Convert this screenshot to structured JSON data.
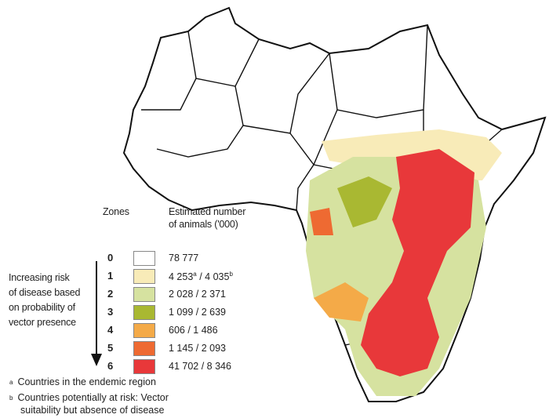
{
  "legend": {
    "zones_header": "Zones",
    "estimate_header_line1": "Estimated number",
    "estimate_header_line2": "of animals ('000)",
    "risk_label": [
      "Increasing risk",
      "of disease based",
      "on probability of",
      "vector presence"
    ],
    "zones": [
      {
        "zone": "0",
        "color": "#ffffff",
        "value": "78 777"
      },
      {
        "zone": "1",
        "color": "#f8ebb8",
        "value_a": "4 253",
        "value_b": "4 035"
      },
      {
        "zone": "2",
        "color": "#d6e2a0",
        "value": "2 028 / 2 371"
      },
      {
        "zone": "3",
        "color": "#a9b832",
        "value": "1 099 / 2 639"
      },
      {
        "zone": "4",
        "color": "#f4aa48",
        "value": "606 / 1 486"
      },
      {
        "zone": "5",
        "color": "#ee6a32",
        "value": "1 145 / 2 093"
      },
      {
        "zone": "6",
        "color": "#e8383a",
        "value": "41 702 / 8 346"
      }
    ],
    "sup_a": "a",
    "sup_b": "b",
    "separator": " / "
  },
  "footnotes": [
    {
      "mark": "a",
      "text": "Countries in the endemic region"
    },
    {
      "mark": "b",
      "text": "Countries potentially at risk: Vector",
      "text2": "suitability but absence of disease"
    }
  ]
}
